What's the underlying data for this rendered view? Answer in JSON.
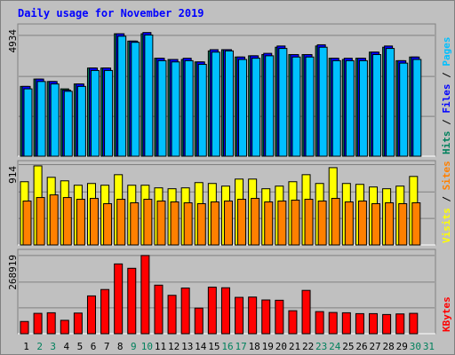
{
  "colors": {
    "background": "#c0c0c0",
    "title": "#0000ff",
    "hits": "#00805c",
    "files": "#0000ff",
    "pages": "#00c0ff",
    "visits": "#ffff00",
    "sites": "#ff8000",
    "kbytes": "#ff0000",
    "weekend_day": "#00805c",
    "weekday": "#000000"
  },
  "chart_data": {
    "type": "bar",
    "title": "Daily usage for November 2019",
    "x": [
      "1",
      "2",
      "3",
      "4",
      "5",
      "6",
      "7",
      "8",
      "9",
      "10",
      "11",
      "12",
      "13",
      "14",
      "15",
      "16",
      "17",
      "18",
      "19",
      "20",
      "21",
      "22",
      "23",
      "24",
      "25",
      "26",
      "27",
      "28",
      "29",
      "30",
      "31"
    ],
    "weekend_days": [
      "2",
      "3",
      "9",
      "10",
      "16",
      "17",
      "23",
      "24",
      "30",
      "31"
    ],
    "panels": [
      {
        "id": "hits-files-pages",
        "axis_max_label": "4934",
        "ylim": [
          0,
          5400
        ],
        "side_label": [
          {
            "text": "Hits",
            "color": "#00805c"
          },
          {
            "text": " / ",
            "color": "#000000"
          },
          {
            "text": "Files",
            "color": "#0000ff"
          },
          {
            "text": " / ",
            "color": "#000000"
          },
          {
            "text": "Pages",
            "color": "#00c0ff"
          }
        ],
        "series": [
          {
            "name": "Hits",
            "color": "#00805c",
            "values": [
              2850,
              3150,
              3050,
              2750,
              2950,
              3600,
              3600,
              5000,
              4700,
              5000,
              4000,
              3950,
              3950,
              3850,
              4300,
              4350,
              4050,
              4100,
              4150,
              4450,
              4150,
              4150,
              4500,
              4000,
              3950,
              4000,
              4250,
              4450,
              3900,
              4050,
              0
            ]
          },
          {
            "name": "Files",
            "color": "#0000ff",
            "values": [
              2850,
              3150,
              3050,
              2700,
              2950,
              3600,
              3600,
              5000,
              4700,
              5050,
              4000,
              3950,
              4000,
              3850,
              4350,
              4350,
              4050,
              4100,
              4200,
              4500,
              4150,
              4150,
              4550,
              4000,
              4000,
              4000,
              4250,
              4500,
              3900,
              4050,
              0
            ]
          },
          {
            "name": "Pages",
            "color": "#00c0ff",
            "values": [
              2750,
              3050,
              2950,
              2650,
              2850,
              3500,
              3500,
              4900,
              4650,
              4950,
              3900,
              3850,
              3900,
              3750,
              4250,
              4300,
              3950,
              4000,
              4100,
              4400,
              4050,
              4050,
              4450,
              3900,
              3900,
              3900,
              4150,
              4400,
              3800,
              3950,
              0
            ]
          }
        ]
      },
      {
        "id": "visits-sites",
        "axis_max_label": "914",
        "ylim": [
          0,
          960
        ],
        "side_label": [
          {
            "text": "Visits",
            "color": "#ffff00"
          },
          {
            "text": " / ",
            "color": "#000000"
          },
          {
            "text": "Sites",
            "color": "#ff8000"
          }
        ],
        "series": [
          {
            "name": "Visits",
            "color": "#ffff00",
            "values": [
              720,
              900,
              770,
              730,
              680,
              700,
              680,
              800,
              680,
              680,
              650,
              640,
              650,
              710,
              700,
              670,
              750,
              750,
              640,
              670,
              720,
              800,
              700,
              880,
              700,
              690,
              660,
              640,
              670,
              780,
              0
            ]
          },
          {
            "name": "Sites",
            "color": "#ff8000",
            "values": [
              500,
              540,
              570,
              540,
              520,
              530,
              470,
              520,
              480,
              520,
              500,
              490,
              480,
              470,
              490,
              500,
              520,
              530,
              490,
              500,
              510,
              520,
              500,
              530,
              490,
              500,
              470,
              480,
              470,
              480,
              0
            ]
          }
        ]
      },
      {
        "id": "kbytes",
        "axis_max_label": "268919",
        "ylim": [
          0,
          290000
        ],
        "side_label": [
          {
            "text": "KBytes",
            "color": "#ff0000"
          }
        ],
        "series": [
          {
            "name": "KBytes",
            "color": "#ff0000",
            "values": [
              42000,
              70000,
              72000,
              46000,
              71000,
              130000,
              152000,
              240000,
              225000,
              268919,
              167000,
              132000,
              157000,
              88000,
              160000,
              158000,
              125000,
              126000,
              116000,
              115000,
              79000,
              149000,
              76000,
              73000,
              72000,
              69000,
              69000,
              66000,
              68000,
              70000,
              0
            ]
          }
        ]
      }
    ]
  }
}
